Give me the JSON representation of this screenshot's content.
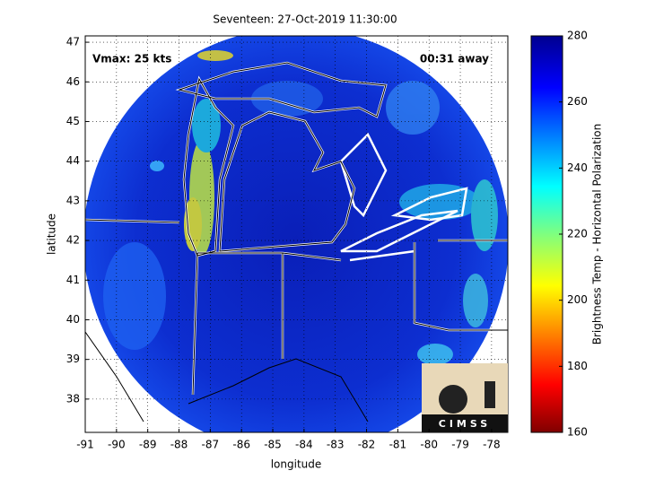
{
  "chart_data": {
    "type": "map",
    "title": "Seventeen: 27-Oct-2019 11:30:00",
    "annotations": [
      "Vmax: 25 kts",
      "00:31 away"
    ],
    "x_label": "longitude",
    "y_label": "latitude",
    "xlim": [
      -91,
      -77.48
    ],
    "xticks": [
      -91,
      -90,
      -89,
      -88,
      -87,
      -86,
      -85,
      -84,
      -83,
      -82,
      -81,
      -80,
      -79,
      -78
    ],
    "ylim": [
      37.16,
      47.16
    ],
    "yticks": [
      38,
      39,
      40,
      41,
      42,
      43,
      44,
      45,
      46,
      47
    ],
    "grid": true,
    "colorbar": {
      "label": "Brightness Temp - Horizontal Polarization",
      "lim": [
        160,
        280
      ],
      "ticks": [
        160,
        180,
        200,
        220,
        240,
        260,
        280
      ]
    },
    "logo": "CIMSS"
  }
}
